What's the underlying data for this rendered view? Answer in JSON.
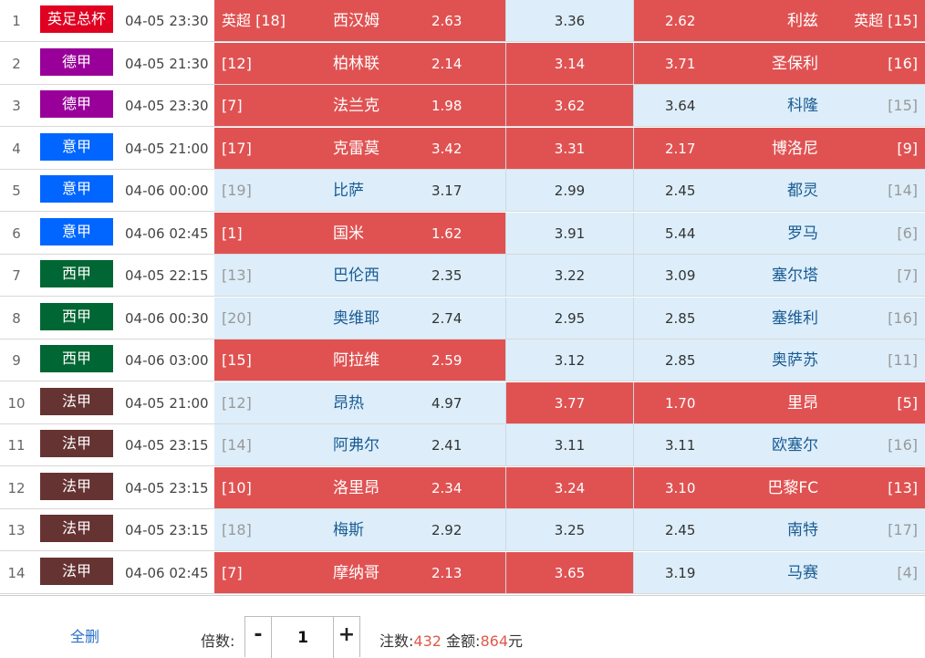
{
  "league_colors": {
    "英足总杯": "#e00021",
    "德甲": "#990099",
    "意甲": "#0066ff",
    "西甲": "#006633",
    "法甲": "#663333"
  },
  "highlight_colors": {
    "hot": "#e05252",
    "cold": "#ddeefa"
  },
  "matches": [
    {
      "idx": "1",
      "league": "英足总杯",
      "time": "04-05 23:30",
      "home_rank": "英超 [18]",
      "home": "西汉姆",
      "odd_win": "2.63",
      "odd_draw": "3.36",
      "odd_loss": "2.62",
      "away": "利兹",
      "away_rank": "英超 [15]",
      "sel_win": true,
      "sel_draw": false,
      "sel_loss": true
    },
    {
      "idx": "2",
      "league": "德甲",
      "time": "04-05 21:30",
      "home_rank": "[12]",
      "home": "柏林联",
      "odd_win": "2.14",
      "odd_draw": "3.14",
      "odd_loss": "3.71",
      "away": "圣保利",
      "away_rank": "[16]",
      "sel_win": true,
      "sel_draw": true,
      "sel_loss": true
    },
    {
      "idx": "3",
      "league": "德甲",
      "time": "04-05 23:30",
      "home_rank": "[7]",
      "home": "法兰克",
      "odd_win": "1.98",
      "odd_draw": "3.62",
      "odd_loss": "3.64",
      "away": "科隆",
      "away_rank": "[15]",
      "sel_win": true,
      "sel_draw": true,
      "sel_loss": false
    },
    {
      "idx": "4",
      "league": "意甲",
      "time": "04-05 21:00",
      "home_rank": "[17]",
      "home": "克雷莫",
      "odd_win": "3.42",
      "odd_draw": "3.31",
      "odd_loss": "2.17",
      "away": "博洛尼",
      "away_rank": "[9]",
      "sel_win": true,
      "sel_draw": true,
      "sel_loss": true
    },
    {
      "idx": "5",
      "league": "意甲",
      "time": "04-06 00:00",
      "home_rank": "[19]",
      "home": "比萨",
      "odd_win": "3.17",
      "odd_draw": "2.99",
      "odd_loss": "2.45",
      "away": "都灵",
      "away_rank": "[14]",
      "sel_win": false,
      "sel_draw": false,
      "sel_loss": false
    },
    {
      "idx": "6",
      "league": "意甲",
      "time": "04-06 02:45",
      "home_rank": "[1]",
      "home": "国米",
      "odd_win": "1.62",
      "odd_draw": "3.91",
      "odd_loss": "5.44",
      "away": "罗马",
      "away_rank": "[6]",
      "sel_win": true,
      "sel_draw": false,
      "sel_loss": false
    },
    {
      "idx": "7",
      "league": "西甲",
      "time": "04-05 22:15",
      "home_rank": "[13]",
      "home": "巴伦西",
      "odd_win": "2.35",
      "odd_draw": "3.22",
      "odd_loss": "3.09",
      "away": "塞尔塔",
      "away_rank": "[7]",
      "sel_win": false,
      "sel_draw": false,
      "sel_loss": false
    },
    {
      "idx": "8",
      "league": "西甲",
      "time": "04-06 00:30",
      "home_rank": "[20]",
      "home": "奥维耶",
      "odd_win": "2.74",
      "odd_draw": "2.95",
      "odd_loss": "2.85",
      "away": "塞维利",
      "away_rank": "[16]",
      "sel_win": false,
      "sel_draw": false,
      "sel_loss": false
    },
    {
      "idx": "9",
      "league": "西甲",
      "time": "04-06 03:00",
      "home_rank": "[15]",
      "home": "阿拉维",
      "odd_win": "2.59",
      "odd_draw": "3.12",
      "odd_loss": "2.85",
      "away": "奥萨苏",
      "away_rank": "[11]",
      "sel_win": true,
      "sel_draw": false,
      "sel_loss": false
    },
    {
      "idx": "10",
      "league": "法甲",
      "time": "04-05 21:00",
      "home_rank": "[12]",
      "home": "昂热",
      "odd_win": "4.97",
      "odd_draw": "3.77",
      "odd_loss": "1.70",
      "away": "里昂",
      "away_rank": "[5]",
      "sel_win": false,
      "sel_draw": true,
      "sel_loss": true
    },
    {
      "idx": "11",
      "league": "法甲",
      "time": "04-05 23:15",
      "home_rank": "[14]",
      "home": "阿弗尔",
      "odd_win": "2.41",
      "odd_draw": "3.11",
      "odd_loss": "3.11",
      "away": "欧塞尔",
      "away_rank": "[16]",
      "sel_win": false,
      "sel_draw": false,
      "sel_loss": false
    },
    {
      "idx": "12",
      "league": "法甲",
      "time": "04-05 23:15",
      "home_rank": "[10]",
      "home": "洛里昂",
      "odd_win": "2.34",
      "odd_draw": "3.24",
      "odd_loss": "3.10",
      "away": "巴黎FC",
      "away_rank": "[13]",
      "sel_win": true,
      "sel_draw": true,
      "sel_loss": true
    },
    {
      "idx": "13",
      "league": "法甲",
      "time": "04-05 23:15",
      "home_rank": "[18]",
      "home": "梅斯",
      "odd_win": "2.92",
      "odd_draw": "3.25",
      "odd_loss": "2.45",
      "away": "南特",
      "away_rank": "[17]",
      "sel_win": false,
      "sel_draw": false,
      "sel_loss": false
    },
    {
      "idx": "14",
      "league": "法甲",
      "time": "04-06 02:45",
      "home_rank": "[7]",
      "home": "摩纳哥",
      "odd_win": "2.13",
      "odd_draw": "3.65",
      "odd_loss": "3.19",
      "away": "马赛",
      "away_rank": "[4]",
      "sel_win": true,
      "sel_draw": true,
      "sel_loss": false
    }
  ],
  "footer": {
    "clear_label": "全删",
    "multiplier_label": "倍数:",
    "minus_label": "-",
    "plus_label": "+",
    "multiplier_value": "1",
    "bets_label": "注数:",
    "bets_count": "432",
    "amount_label": "金额:",
    "amount_value": "864",
    "currency": "元"
  }
}
